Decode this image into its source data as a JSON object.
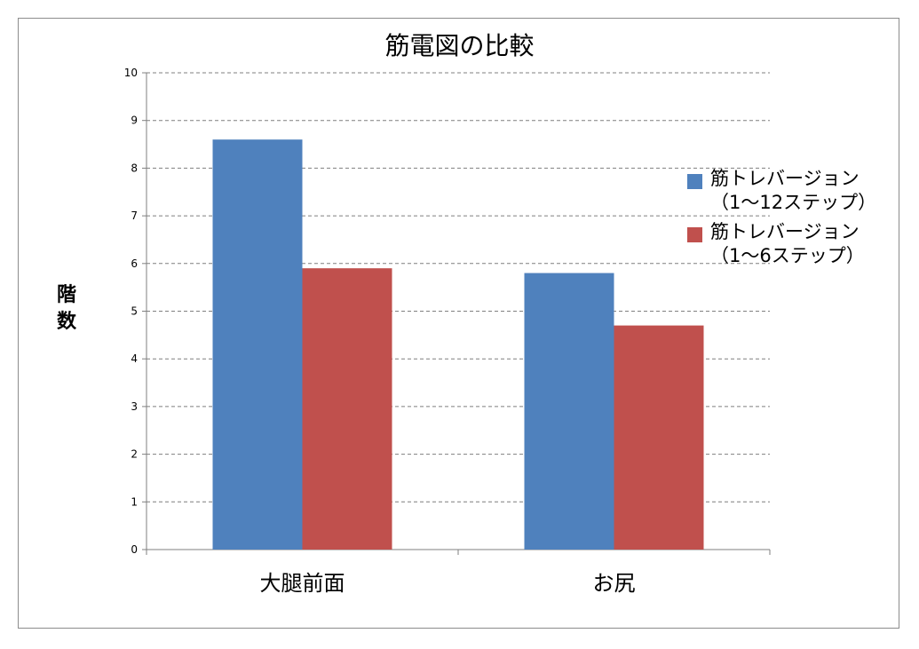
{
  "chart_data": {
    "type": "bar",
    "title": "筋電図の比較",
    "xlabel": "",
    "ylabel_chars": [
      "階",
      "数"
    ],
    "categories": [
      "大腿前面",
      "お尻"
    ],
    "ylim": [
      0,
      10
    ],
    "yticks": [
      0,
      1,
      2,
      3,
      4,
      5,
      6,
      7,
      8,
      9,
      10
    ],
    "grid": true,
    "legend_position": "right",
    "series": [
      {
        "name": "筋トレバージョン\n（1～12ステップ）",
        "color": "#4f81bd",
        "values": [
          8.6,
          5.8
        ]
      },
      {
        "name": "筋トレバージョン\n（1～6ステップ）",
        "color": "#c0504d",
        "values": [
          5.9,
          4.7
        ]
      }
    ]
  }
}
